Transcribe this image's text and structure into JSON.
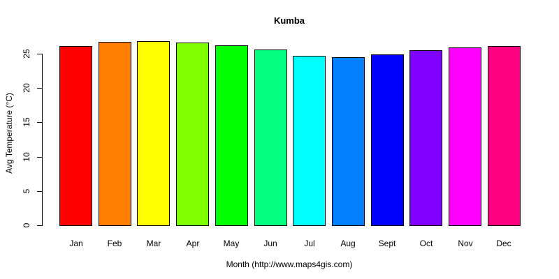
{
  "chart_data": {
    "type": "bar",
    "title": "Kumba",
    "xlabel": "Month (http://www.maps4gis.com)",
    "ylabel": "Avg Temperature (°C)",
    "ylim": [
      0,
      27
    ],
    "yticks": [
      0,
      5,
      10,
      15,
      20,
      25
    ],
    "grid": false,
    "legend": null,
    "categories": [
      "Jan",
      "Feb",
      "Mar",
      "Apr",
      "May",
      "Jun",
      "Jul",
      "Aug",
      "Sept",
      "Oct",
      "Nov",
      "Dec"
    ],
    "values": [
      26.1,
      26.7,
      26.8,
      26.6,
      26.2,
      25.6,
      24.7,
      24.5,
      24.9,
      25.5,
      25.9,
      26.1
    ],
    "colors": [
      "#FF0000",
      "#FF8000",
      "#FFFF00",
      "#80FF00",
      "#00FF00",
      "#00FF80",
      "#00FFFF",
      "#0080FF",
      "#0000FF",
      "#8000FF",
      "#FF00FF",
      "#FF0080"
    ]
  }
}
